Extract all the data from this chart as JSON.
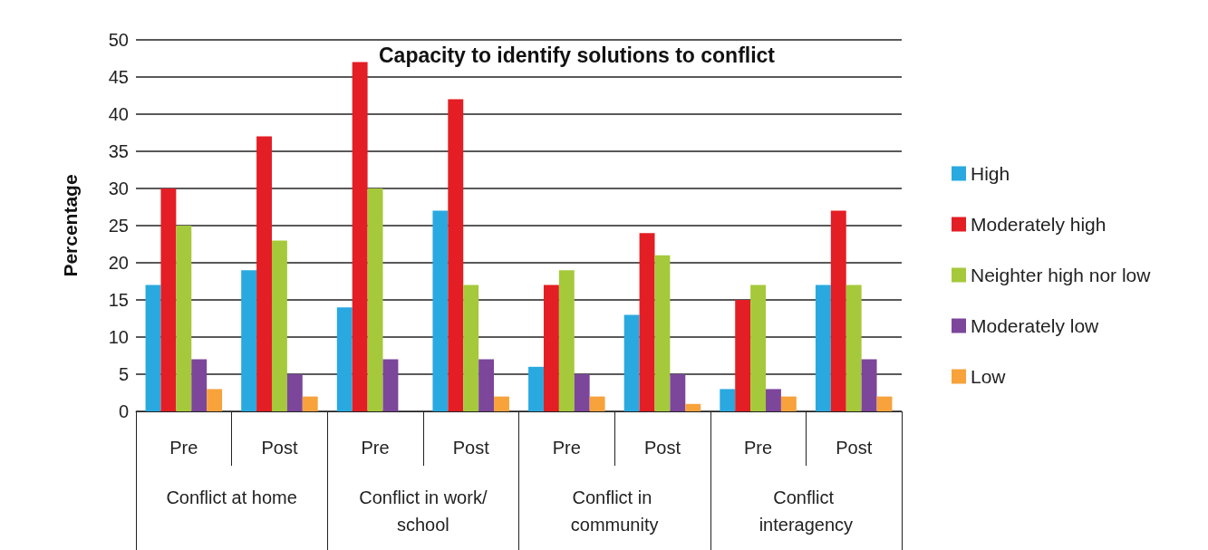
{
  "chart_data": {
    "type": "bar",
    "title": "Capacity to identify solutions to conflict",
    "ylabel": "Percentage",
    "categories": [
      "Pre",
      "Post",
      "Pre",
      "Post",
      "Pre",
      "Post",
      "Pre",
      "Post"
    ],
    "annotations": [
      "Conflict at home",
      "Conflict in work/school",
      "Conflict in community",
      "Conflict interagency"
    ],
    "series": [
      {
        "name": "High",
        "color": "#29a9e0",
        "values": [
          17,
          19,
          14,
          27,
          6,
          13,
          3,
          17
        ]
      },
      {
        "name": "Moderately high",
        "color": "#e31e24",
        "values": [
          30,
          37,
          47,
          42,
          17,
          24,
          15,
          27
        ]
      },
      {
        "name": "Neighter high nor low",
        "color": "#a5c93a",
        "values": [
          25,
          23,
          30,
          17,
          19,
          21,
          17,
          17
        ]
      },
      {
        "name": "Moderately low",
        "color": "#7c469b",
        "values": [
          7,
          5,
          7,
          7,
          5,
          5,
          3,
          7
        ]
      },
      {
        "name": "Low",
        "color": "#f7a23b",
        "values": [
          3,
          2,
          0,
          2,
          2,
          1,
          2,
          2
        ]
      }
    ],
    "ylim": [
      0,
      50
    ],
    "yticks": [
      0,
      5,
      10,
      15,
      20,
      25,
      30,
      35,
      40,
      45,
      50
    ],
    "grid": "y",
    "legend": "right"
  }
}
